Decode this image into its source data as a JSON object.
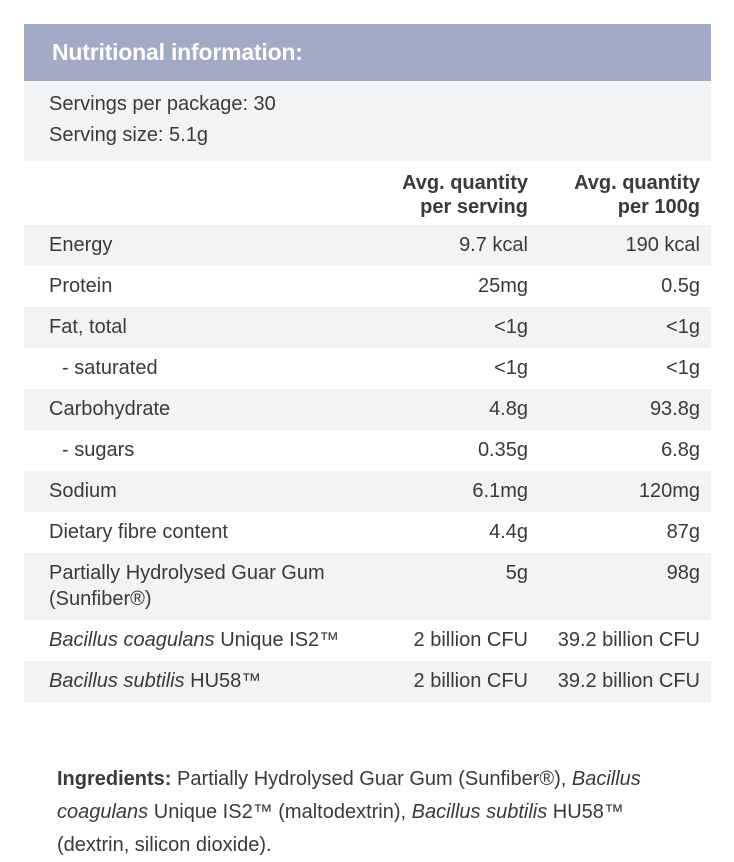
{
  "header": {
    "title": "Nutritional information:"
  },
  "servings": {
    "per_package": "Servings per package: 30",
    "size": "Serving size: 5.1g"
  },
  "table": {
    "col_serving": [
      "Avg. quantity",
      "per serving"
    ],
    "col_100g": [
      "Avg. quantity",
      "per 100g"
    ],
    "rows": [
      {
        "name": "Energy",
        "serving": "9.7 kcal",
        "per100": "190 kcal"
      },
      {
        "name": "Protein",
        "serving": "25mg",
        "per100": "0.5g"
      },
      {
        "name": "Fat, total",
        "serving": "<1g",
        "per100": "<1g"
      },
      {
        "name": "- saturated",
        "serving": "<1g",
        "per100": "<1g"
      },
      {
        "name": "Carbohydrate",
        "serving": "4.8g",
        "per100": "93.8g"
      },
      {
        "name": "- sugars",
        "serving": "0.35g",
        "per100": "6.8g"
      },
      {
        "name": "Sodium",
        "serving": "6.1mg",
        "per100": "120mg"
      },
      {
        "name": "Dietary fibre content",
        "serving": "4.4g",
        "per100": "87g"
      },
      {
        "name": "Partially Hydrolysed Guar Gum (Sunfiber®)",
        "serving": "5g",
        "per100": "98g"
      },
      {
        "name_italic": "Bacillus coagulans",
        "name_rest": " Unique IS2™",
        "serving": "2 billion CFU",
        "per100": "39.2 billion CFU"
      },
      {
        "name_italic": "Bacillus subtilis",
        "name_rest": " HU58™",
        "serving": "2 billion CFU",
        "per100": "39.2 billion CFU"
      }
    ]
  },
  "ingredients": {
    "label": "Ingredients:",
    "part1": " Partially Hydrolysed Guar Gum (Sunfiber®), ",
    "italic1": "Bacillus coagulans",
    "part2": " Unique IS2™ (maltodextrin), ",
    "italic2": "Bacillus subtilis",
    "part3": " HU58™ (dextrin, silicon dioxide)."
  },
  "colors": {
    "header_bg": "#a3aac6",
    "row_shade": "#f2f3f4",
    "text": "#3a3a3a"
  }
}
